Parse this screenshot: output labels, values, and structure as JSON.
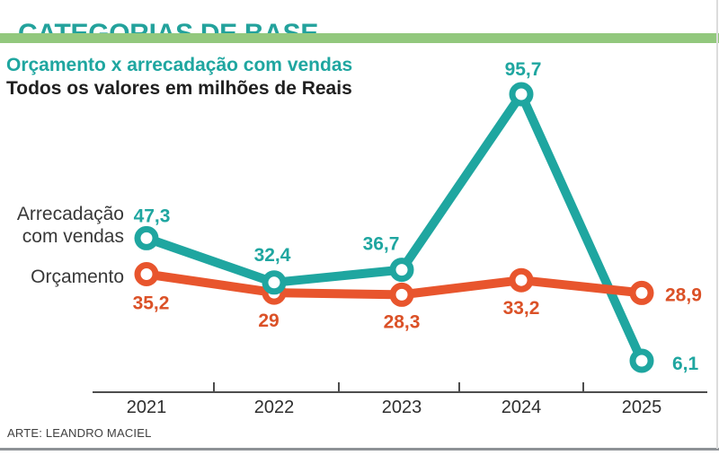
{
  "header": {
    "title": "CATEGORIAS DE BASE"
  },
  "subtitle": {
    "line1": "Orçamento x arrecadação com vendas",
    "line2": "Todos os valores em milhões de Reais"
  },
  "footer": {
    "credit": "ARTE: LEANDRO MACIEL"
  },
  "colors": {
    "teal": "#1fa6a0",
    "orange": "#e8552d",
    "orange_label": "#db5127",
    "green_bar": "#92c87d",
    "axis": "#4d4d4d",
    "year_text": "#2e2e2e",
    "legend_text": "#383838"
  },
  "chart_data": {
    "type": "line",
    "title": "Orçamento x arrecadação com vendas",
    "unit": "milhões de Reais",
    "categories": [
      "2021",
      "2022",
      "2023",
      "2024",
      "2025"
    ],
    "series": [
      {
        "id": "arrecadacao",
        "name": "Arrecadação com vendas",
        "color_key": "teal",
        "values": [
          47.3,
          32.4,
          36.7,
          95.7,
          6.1
        ],
        "labels": [
          "47,3",
          "32,4",
          "36,7",
          "95,7",
          "6,1"
        ]
      },
      {
        "id": "orcamento",
        "name": "Orçamento",
        "color_key": "orange",
        "values": [
          35.2,
          29,
          28.3,
          33.2,
          28.9
        ],
        "labels": [
          "35,2",
          "29",
          "28,3",
          "33,2",
          "28,9"
        ]
      }
    ],
    "legend": [
      {
        "lines": [
          "Arrecadação",
          "com vendas"
        ]
      },
      {
        "lines": [
          "Orçamento"
        ]
      }
    ],
    "legend_position": "left-of-first-points",
    "grid": false,
    "ylim": [
      0,
      100
    ],
    "xlabel": "",
    "ylabel": ""
  }
}
